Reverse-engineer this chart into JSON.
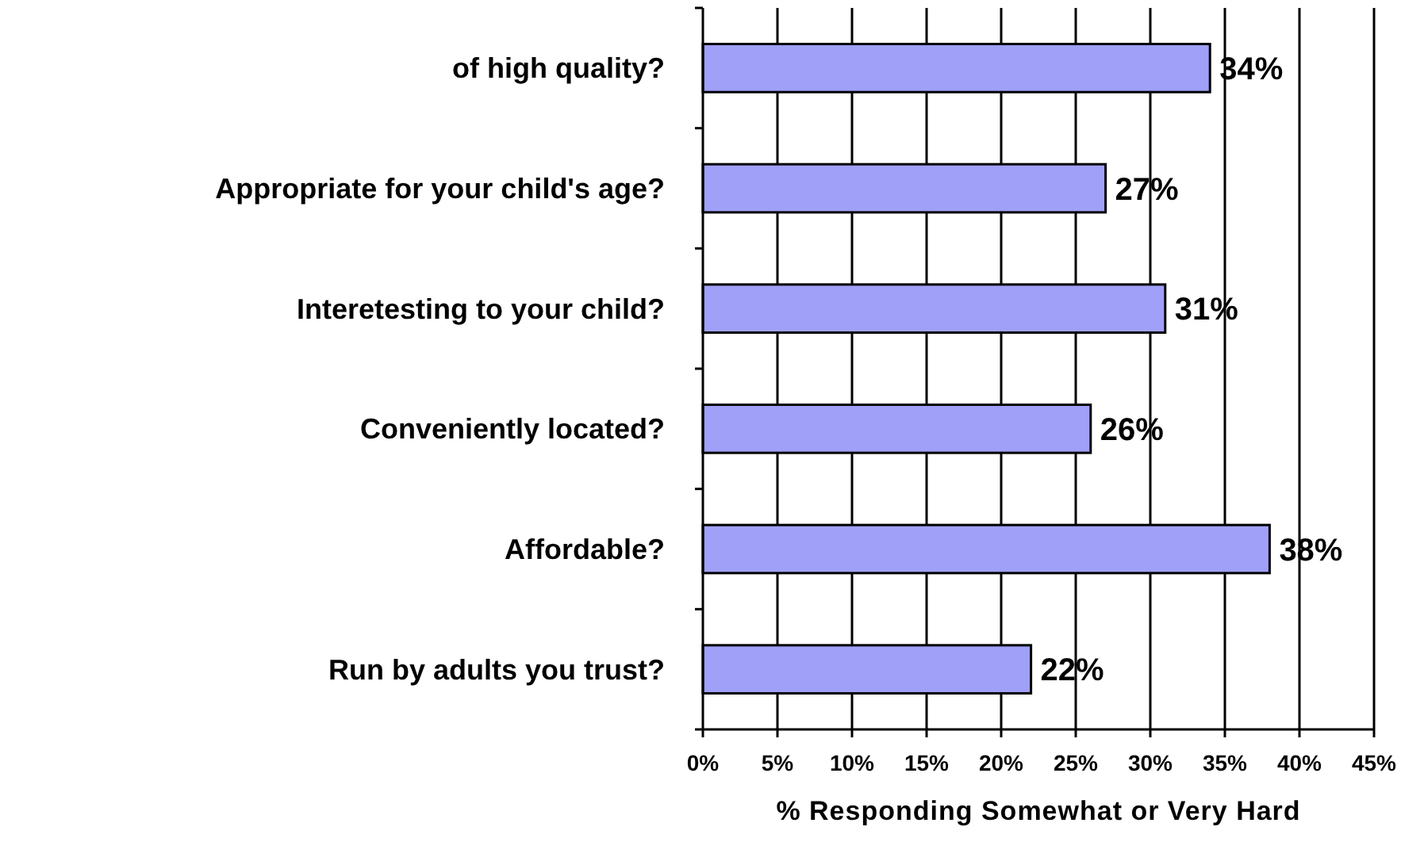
{
  "chart_data": {
    "type": "bar",
    "orientation": "horizontal",
    "categories": [
      "of high quality?",
      "Appropriate for your child's age?",
      "Interetesting to your child?",
      "Conveniently located?",
      "Affordable?",
      "Run by adults you trust?"
    ],
    "values": [
      34,
      27,
      31,
      26,
      38,
      22
    ],
    "value_labels": [
      "34%",
      "27%",
      "31%",
      "26%",
      "38%",
      "22%"
    ],
    "color": "#a0a0f8",
    "xlabel": "% Responding Somewhat or Very Hard",
    "xlim": [
      0,
      45
    ],
    "xticks": [
      {
        "value": 0,
        "label": "0%"
      },
      {
        "value": 5,
        "label": "5%"
      },
      {
        "value": 10,
        "label": "10%"
      },
      {
        "value": 15,
        "label": "15%"
      },
      {
        "value": 20,
        "label": "20%"
      },
      {
        "value": 25,
        "label": "25%"
      },
      {
        "value": 30,
        "label": "30%"
      },
      {
        "value": 35,
        "label": "35%"
      },
      {
        "value": 40,
        "label": "40%"
      },
      {
        "value": 45,
        "label": "45%"
      }
    ],
    "grid": "x"
  }
}
